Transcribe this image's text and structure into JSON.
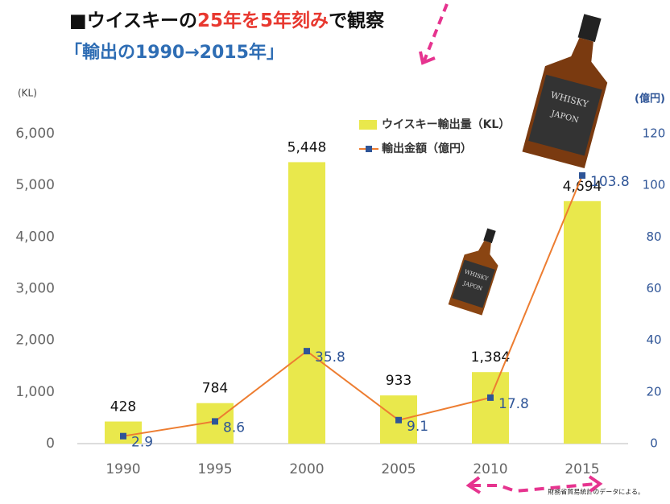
{
  "chart_data": {
    "type": "bar_line",
    "title_parts": [
      "■ウイスキーの",
      "25年を5年刻み",
      "で観察"
    ],
    "subtitle": "「輸出の1990→2015年」",
    "y_label": "(KL)",
    "y2_label": "(億円)",
    "categories": [
      "1990",
      "1995",
      "2000",
      "2005",
      "2010",
      "2015"
    ],
    "series": [
      {
        "name": "ウイスキー輸出量（KL）",
        "color": "#e9e84c",
        "kind": "bar",
        "axis": "y",
        "values": [
          428,
          784,
          5448,
          933,
          1384,
          4694
        ],
        "value_labels": [
          "428",
          "784",
          "5,448",
          "933",
          "1,384",
          "4,694"
        ]
      },
      {
        "name": "輸出金額（億円）",
        "color": "#ed7d31",
        "marker_color": "#2f5597",
        "kind": "line",
        "axis": "y2",
        "values": [
          2.9,
          8.6,
          35.8,
          9.1,
          17.8,
          103.8
        ]
      }
    ],
    "ylim": [
      0,
      6000
    ],
    "yticks": [
      0,
      {
        "value": 1000,
        "label": "1,000"
      },
      {
        "value": 2000,
        "label": "2,000"
      },
      {
        "value": 3000,
        "label": "3,000"
      },
      {
        "value": 4000,
        "label": "4,000"
      },
      {
        "value": 5000,
        "label": "5,000"
      },
      {
        "value": 6000,
        "label": "6,000"
      }
    ],
    "y2lim": [
      0,
      120
    ],
    "y2ticks": [
      0,
      20,
      40,
      60,
      80,
      100,
      120
    ],
    "source": "財務省貿易統計のデータによる。"
  }
}
